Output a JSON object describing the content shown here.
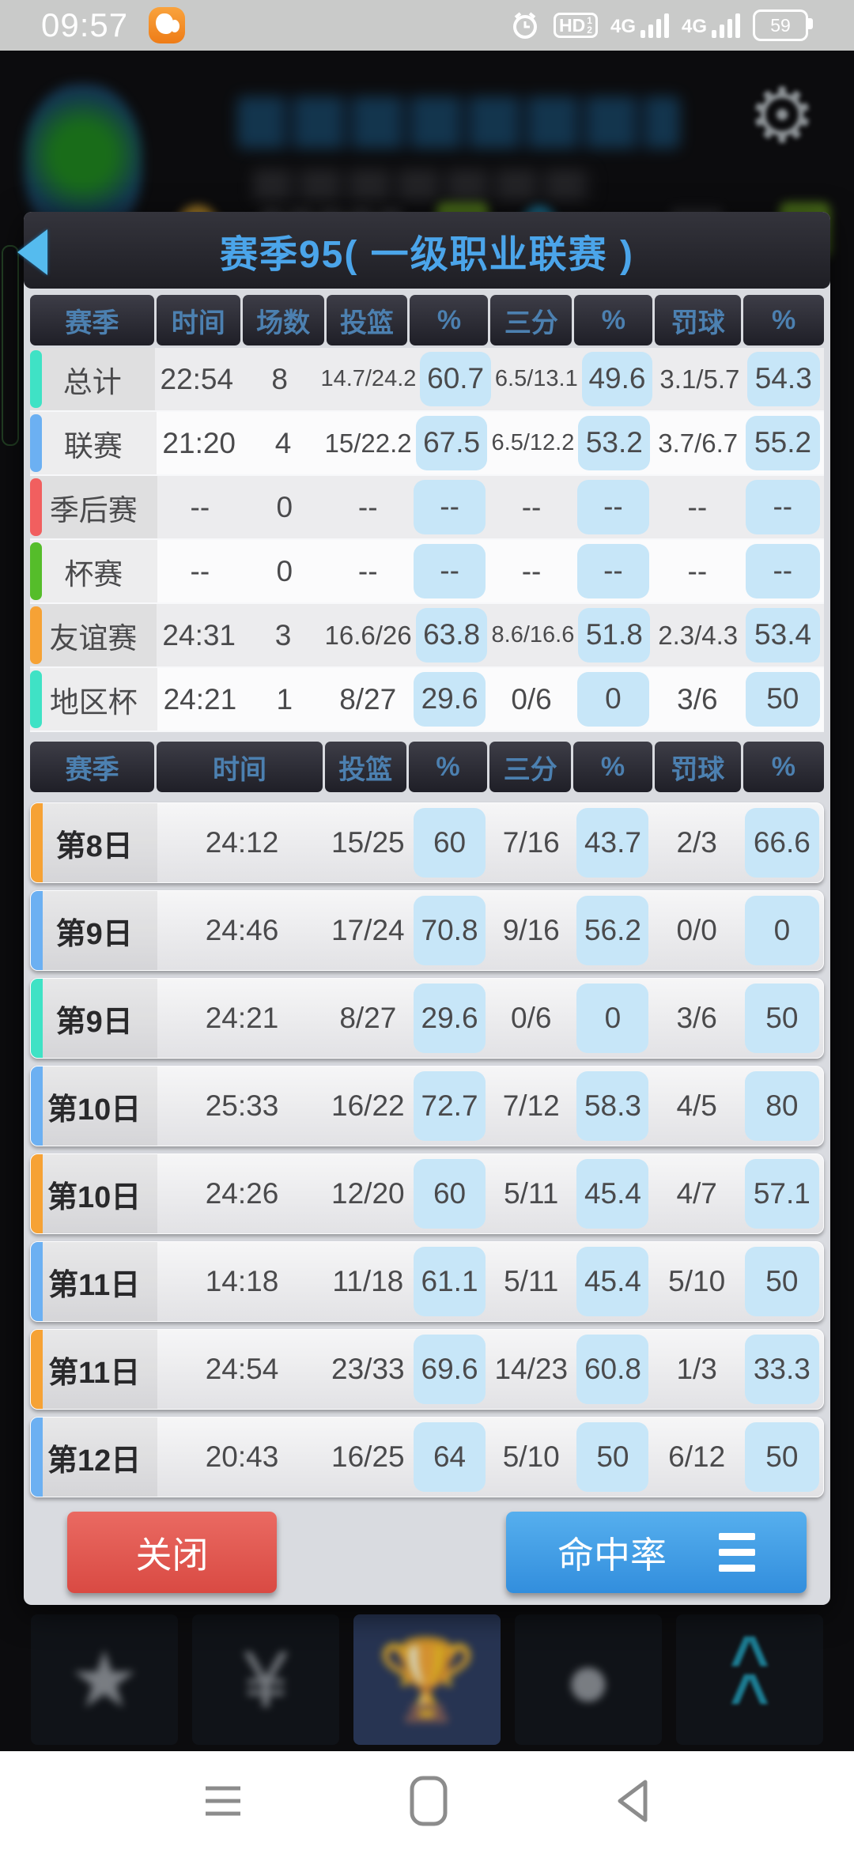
{
  "status_bar": {
    "time": "09:57",
    "signal_label": "4G",
    "hd_label": "HD",
    "hd_sup": "1",
    "hd_sub": "2",
    "battery_percent": "59"
  },
  "dialog": {
    "title": "赛季95( 一级职业联赛 )",
    "summary_table": {
      "headers": [
        "赛季",
        "时间",
        "场数",
        "投篮",
        "%",
        "三分",
        "%",
        "罚球",
        "%"
      ],
      "highlight_cols": [
        4,
        6,
        8
      ],
      "rows": [
        {
          "accent": "#3fe2c5",
          "cells": [
            "总计",
            "22:54",
            "8",
            "14.7/24.2",
            "60.7",
            "6.5/13.1",
            "49.6",
            "3.1/5.7",
            "54.3"
          ]
        },
        {
          "accent": "#6cb0f2",
          "cells": [
            "联赛",
            "21:20",
            "4",
            "15/22.2",
            "67.5",
            "6.5/12.2",
            "53.2",
            "3.7/6.7",
            "55.2"
          ]
        },
        {
          "accent": "#f15f5f",
          "cells": [
            "季后赛",
            "--",
            "0",
            "--",
            "--",
            "--",
            "--",
            "--",
            "--"
          ]
        },
        {
          "accent": "#55bd2a",
          "cells": [
            "杯赛",
            "--",
            "0",
            "--",
            "--",
            "--",
            "--",
            "--",
            "--"
          ]
        },
        {
          "accent": "#f6a235",
          "cells": [
            "友谊赛",
            "24:31",
            "3",
            "16.6/26",
            "63.8",
            "8.6/16.6",
            "51.8",
            "2.3/4.3",
            "53.4"
          ]
        },
        {
          "accent": "#3fe2c5",
          "cells": [
            "地区杯",
            "24:21",
            "1",
            "8/27",
            "29.6",
            "0/6",
            "0",
            "3/6",
            "50"
          ]
        }
      ]
    },
    "daily_table": {
      "headers": [
        "赛季",
        "时间",
        "投篮",
        "%",
        "三分",
        "%",
        "罚球",
        "%"
      ],
      "highlight_cols": [
        3,
        5,
        7
      ],
      "rows": [
        {
          "accent": "#f6a235",
          "cells": [
            "第8日",
            "24:12",
            "15/25",
            "60",
            "7/16",
            "43.7",
            "2/3",
            "66.6"
          ]
        },
        {
          "accent": "#6cb0f2",
          "cells": [
            "第9日",
            "24:46",
            "17/24",
            "70.8",
            "9/16",
            "56.2",
            "0/0",
            "0"
          ]
        },
        {
          "accent": "#3fe2c5",
          "cells": [
            "第9日",
            "24:21",
            "8/27",
            "29.6",
            "0/6",
            "0",
            "3/6",
            "50"
          ]
        },
        {
          "accent": "#6cb0f2",
          "cells": [
            "第10日",
            "25:33",
            "16/22",
            "72.7",
            "7/12",
            "58.3",
            "4/5",
            "80"
          ]
        },
        {
          "accent": "#f6a235",
          "cells": [
            "第10日",
            "24:26",
            "12/20",
            "60",
            "5/11",
            "45.4",
            "4/7",
            "57.1"
          ]
        },
        {
          "accent": "#6cb0f2",
          "cells": [
            "第11日",
            "14:18",
            "11/18",
            "61.1",
            "5/11",
            "45.4",
            "5/10",
            "50"
          ]
        },
        {
          "accent": "#f6a235",
          "cells": [
            "第11日",
            "24:54",
            "23/33",
            "69.6",
            "14/23",
            "60.8",
            "1/3",
            "33.3"
          ]
        },
        {
          "accent": "#6cb0f2",
          "cells": [
            "第12日",
            "20:43",
            "16/25",
            "64",
            "5/10",
            "50",
            "6/12",
            "50"
          ]
        }
      ]
    },
    "close_label": "关闭",
    "rate_label": "命中率"
  },
  "colors": {
    "title_text": "#4ba5ea",
    "header_text": "#4c80b0",
    "highlight_cell": "#c7e6f8",
    "close_button": "#d94a43",
    "rate_button": "#3f9fe6",
    "dialog_bg": "#d9dbe0",
    "table_header_bg": "#26262e"
  }
}
